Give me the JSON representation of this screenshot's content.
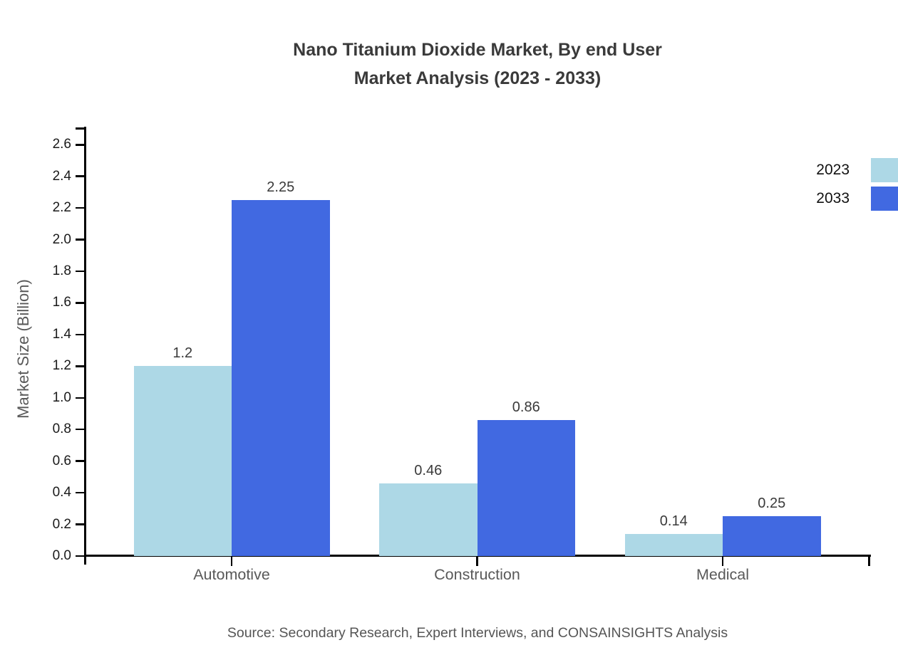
{
  "title_lines": [
    "Nano Titanium Dioxide Market, By end User",
    "Market Analysis (2023 - 2033)"
  ],
  "source_note": "Source: Secondary Research, Expert Interviews, and CONSAINSIGHTS Analysis",
  "chart_data": {
    "type": "bar",
    "title": "Nano Titanium Dioxide Market, By end User Market Analysis (2023 - 2033)",
    "categories": [
      "Automotive",
      "Construction",
      "Medical"
    ],
    "series": [
      {
        "name": "2023",
        "color": "#ADD8E6",
        "values": [
          1.2,
          0.46,
          0.14
        ]
      },
      {
        "name": "2033",
        "color": "#4169E1",
        "values": [
          2.25,
          0.86,
          0.25
        ]
      }
    ],
    "xlabel": "",
    "ylabel": "Market Size (Billion)",
    "ylim": [
      0,
      2.6
    ],
    "ytick_step": 0.2,
    "grid": false,
    "legend_position": "right-outside-top",
    "axis_color": "#000000",
    "tick_label_color": "#1a1a1a",
    "category_label_color": "#595959",
    "value_label_color": "#3a3a3a",
    "title_color": "#3a3a3a",
    "background_color": "#ffffff"
  }
}
